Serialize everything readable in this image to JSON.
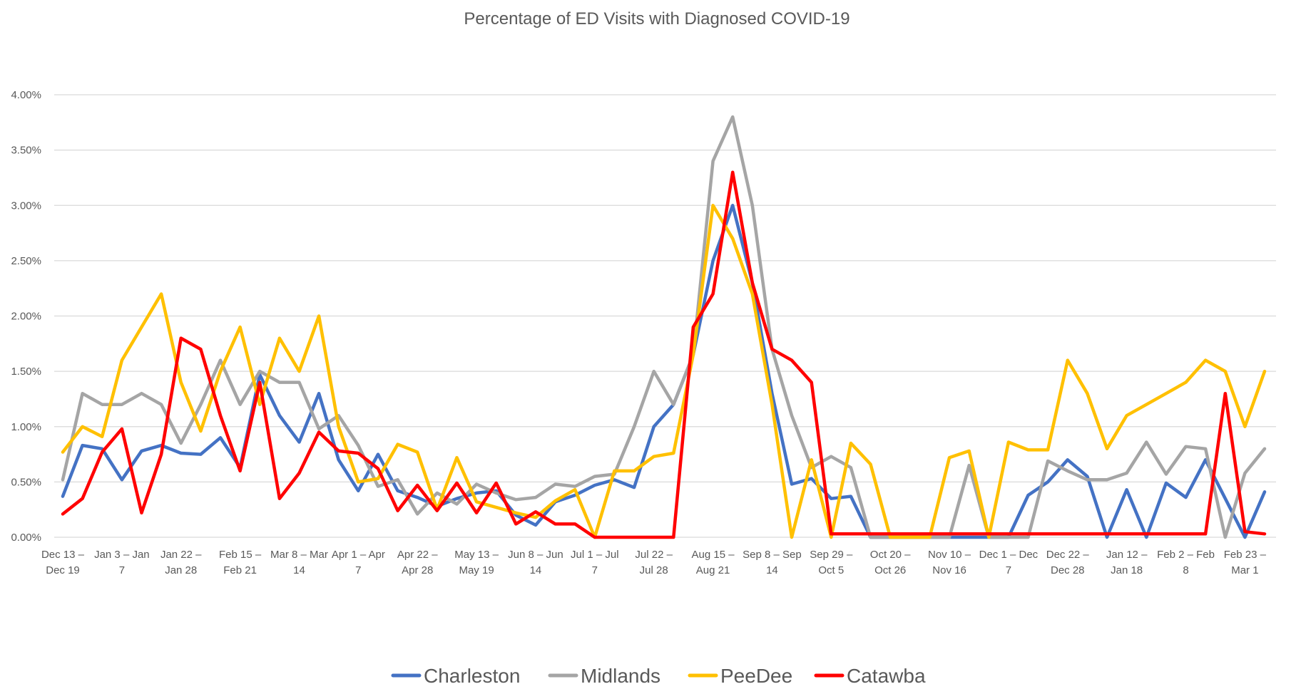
{
  "chart_data": {
    "type": "line",
    "title": "Percentage of ED Visits with Diagnosed COVID-19",
    "xlabel": "",
    "ylabel": "",
    "ylim": [
      0,
      0.04
    ],
    "y_ticks": [
      "0.00%",
      "0.50%",
      "1.00%",
      "1.50%",
      "2.00%",
      "2.50%",
      "3.00%",
      "3.50%",
      "4.00%"
    ],
    "y_tick_values": [
      0,
      0.005,
      0.01,
      0.015,
      0.02,
      0.025,
      0.03,
      0.035,
      0.04
    ],
    "grid": true,
    "legend_position": "bottom",
    "categories": [
      "Dec 13 – Dec 19",
      "",
      "",
      "Jan 3 – Jan 7",
      "",
      "",
      "Jan 22 – Jan 28",
      "",
      "",
      "Feb 15 – Feb 21",
      "",
      "",
      "Mar 8 – Mar 14",
      "",
      "",
      "Apr 1 – Apr 7",
      "",
      "",
      "Apr 22 – Apr 28",
      "",
      "",
      "May 13 – May 19",
      "",
      "",
      "Jun 8 – Jun 14",
      "",
      "",
      "Jul 1 – Jul 7",
      "",
      "",
      "Jul 22 – Jul 28",
      "",
      "",
      "Aug 15 – Aug 21",
      "",
      "",
      "Sep 8 – Sep 14",
      "",
      "",
      "Sep 29 – Oct 5",
      "",
      "",
      "Oct 20 – Oct 26",
      "",
      "",
      "Nov 10 – Nov 16",
      "",
      "",
      "Dec 1 – Dec 7",
      "",
      "",
      "Dec 22 – Dec 28",
      "",
      "",
      "Jan 12 – Jan 18",
      "",
      "",
      "Feb 2 – Feb 8",
      "",
      "",
      "Feb 23 – Mar 1",
      ""
    ],
    "series": [
      {
        "name": "Charleston",
        "color": "#4472C4",
        "values": [
          0.0037,
          0.0083,
          0.008,
          0.0052,
          0.0078,
          0.0083,
          0.0076,
          0.0075,
          0.009,
          0.0063,
          0.0147,
          0.011,
          0.0086,
          0.013,
          0.007,
          0.0042,
          0.0075,
          0.0042,
          0.0036,
          0.0028,
          0.0035,
          0.004,
          0.0042,
          0.002,
          0.0011,
          0.0032,
          0.0038,
          0.0047,
          0.0052,
          0.0045,
          0.01,
          0.012,
          0.0165,
          0.025,
          0.03,
          0.023,
          0.013,
          0.0048,
          0.0053,
          0.0035,
          0.0037,
          0,
          0,
          0,
          0,
          0,
          0,
          0,
          0,
          0.0038,
          0.005,
          0.007,
          0.0055,
          0,
          0.0043,
          0,
          0.0049,
          0.0036,
          0.007,
          0.0035,
          0,
          0.0041
        ]
      },
      {
        "name": "Midlands",
        "color": "#A5A5A5",
        "values": [
          0.0052,
          0.013,
          0.012,
          0.012,
          0.013,
          0.012,
          0.0085,
          0.012,
          0.016,
          0.012,
          0.015,
          0.014,
          0.014,
          0.0098,
          0.011,
          0.0083,
          0.0046,
          0.0052,
          0.0021,
          0.004,
          0.003,
          0.0048,
          0.004,
          0.0034,
          0.0036,
          0.0048,
          0.0046,
          0.0055,
          0.0057,
          0.01,
          0.015,
          0.012,
          0.0165,
          0.034,
          0.038,
          0.03,
          0.017,
          0.011,
          0.0063,
          0.0073,
          0.0063,
          0,
          0,
          0,
          0,
          0,
          0.0065,
          0,
          0,
          0,
          0.0069,
          0.006,
          0.0052,
          0.0052,
          0.0058,
          0.0086,
          0.0057,
          0.0082,
          0.008,
          0,
          0.0058,
          0.008
        ]
      },
      {
        "name": "PeeDee",
        "color": "#FFC000",
        "values": [
          0.0077,
          0.01,
          0.0091,
          0.016,
          0.019,
          0.022,
          0.014,
          0.0096,
          0.015,
          0.019,
          0.012,
          0.018,
          0.015,
          0.02,
          0.01,
          0.005,
          0.0053,
          0.0084,
          0.0077,
          0.0025,
          0.0072,
          0.0032,
          0.0027,
          0.0022,
          0.0018,
          0.0033,
          0.0043,
          0,
          0.006,
          0.006,
          0.0073,
          0.0076,
          0.0165,
          0.03,
          0.027,
          0.022,
          0.012,
          0,
          0.007,
          0,
          0.0085,
          0.0066,
          0,
          0,
          0,
          0.0072,
          0.0078,
          0,
          0.0086,
          0.0079,
          0.0079,
          0.016,
          0.013,
          0.008,
          0.011,
          0.012,
          0.013,
          0.014,
          0.016,
          0.015,
          0.01,
          0.015
        ]
      },
      {
        "name": "Catawba",
        "color": "#FF0000",
        "values": [
          0.0021,
          0.0035,
          0.0077,
          0.0098,
          0.0022,
          0.0075,
          0.018,
          0.017,
          0.011,
          0.006,
          0.014,
          0.0035,
          0.0058,
          0.0095,
          0.0078,
          0.0076,
          0.0062,
          0.0024,
          0.0047,
          0.0024,
          0.0049,
          0.0022,
          0.0049,
          0.0012,
          0.0023,
          0.0012,
          0.0012,
          0,
          0,
          0,
          0,
          0,
          0.019,
          0.022,
          0.033,
          0.023,
          0.017,
          0.016,
          0.014,
          0.0003,
          0.0003,
          0.0003,
          0.0003,
          0.0003,
          0.0003,
          0.0003,
          0.0003,
          0.0003,
          0.0003,
          0.0003,
          0.0003,
          0.0003,
          0.0003,
          0.0003,
          0.0003,
          0.0003,
          0.0003,
          0.0003,
          0.0003,
          0.013,
          0.0005,
          0.0003
        ]
      }
    ]
  }
}
